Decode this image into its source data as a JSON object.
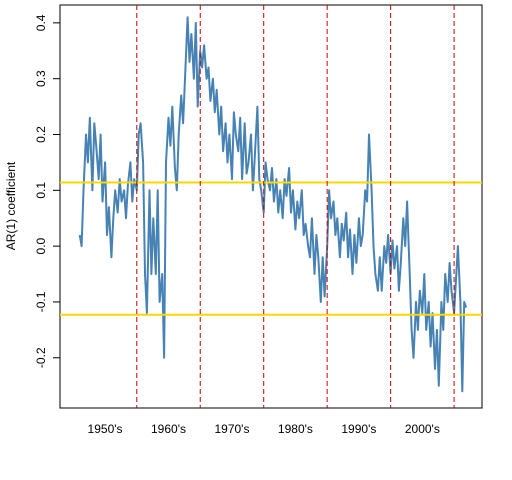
{
  "chart_data": {
    "type": "line",
    "ylabel": "AR(1) coefficient",
    "xlim": [
      1947.9,
      2014.4
    ],
    "ylim": [
      -0.29,
      0.432
    ],
    "yticks": [
      -0.2,
      -0.1,
      {
        "value": 0,
        "label": "0.0"
      },
      0.1,
      0.2,
      0.3,
      0.4
    ],
    "xlabels": [
      {
        "value": 1955,
        "label": "1950's"
      },
      {
        "value": 1965,
        "label": "1960's"
      },
      {
        "value": 1975,
        "label": "1970's"
      },
      {
        "value": 1985,
        "label": "1980's"
      },
      {
        "value": 1995,
        "label": "1990's"
      },
      {
        "value": 2005,
        "label": "2000's"
      }
    ],
    "vlines": {
      "color": "#cc0000",
      "values": [
        1960,
        1970,
        1980,
        1990,
        2000,
        2010
      ]
    },
    "hlines": {
      "color": "#ffd700",
      "values": [
        0.114,
        -0.123
      ]
    },
    "series": [
      {
        "color": "#4682b4",
        "x": [
          1951.0,
          1951.3,
          1951.6,
          1952.0,
          1952.3,
          1952.6,
          1953.0,
          1953.3,
          1953.6,
          1954.0,
          1954.3,
          1954.6,
          1955.0,
          1955.3,
          1955.6,
          1956.0,
          1956.3,
          1956.6,
          1957.0,
          1957.3,
          1957.6,
          1958.0,
          1958.3,
          1958.6,
          1959.0,
          1959.3,
          1959.6,
          1960.0,
          1960.3,
          1960.6,
          1961.0,
          1961.3,
          1961.6,
          1962.0,
          1962.3,
          1962.6,
          1963.0,
          1963.3,
          1963.6,
          1964.0,
          1964.3,
          1964.6,
          1965.0,
          1965.3,
          1965.6,
          1966.0,
          1966.3,
          1966.6,
          1967.0,
          1967.3,
          1967.6,
          1968.0,
          1968.3,
          1968.6,
          1969.0,
          1969.3,
          1969.6,
          1970.0,
          1970.3,
          1970.6,
          1971.0,
          1971.3,
          1971.6,
          1972.0,
          1972.3,
          1972.6,
          1973.0,
          1973.3,
          1973.6,
          1974.0,
          1974.3,
          1974.6,
          1975.0,
          1975.3,
          1975.6,
          1976.0,
          1976.3,
          1976.6,
          1977.0,
          1977.3,
          1977.6,
          1978.0,
          1978.3,
          1978.6,
          1979.0,
          1979.3,
          1979.6,
          1980.0,
          1980.3,
          1980.6,
          1981.0,
          1981.3,
          1981.6,
          1982.0,
          1982.3,
          1982.6,
          1983.0,
          1983.3,
          1983.6,
          1984.0,
          1984.3,
          1984.6,
          1985.0,
          1985.3,
          1985.6,
          1986.0,
          1986.3,
          1986.6,
          1987.0,
          1987.3,
          1987.6,
          1988.0,
          1988.3,
          1988.6,
          1989.0,
          1989.3,
          1989.6,
          1990.0,
          1990.3,
          1990.6,
          1991.0,
          1991.3,
          1991.6,
          1992.0,
          1992.3,
          1992.6,
          1993.0,
          1993.3,
          1993.6,
          1994.0,
          1994.3,
          1994.6,
          1995.0,
          1995.3,
          1995.6,
          1996.0,
          1996.3,
          1996.6,
          1997.0,
          1997.3,
          1997.6,
          1998.0,
          1998.3,
          1998.6,
          1999.0,
          1999.3,
          1999.6,
          2000.0,
          2000.3,
          2000.6,
          2001.0,
          2001.3,
          2001.6,
          2002.0,
          2002.3,
          2002.6,
          2003.0,
          2003.3,
          2003.6,
          2004.0,
          2004.3,
          2004.6,
          2005.0,
          2005.3,
          2005.6,
          2006.0,
          2006.3,
          2006.6,
          2007.0,
          2007.3,
          2007.6,
          2008.0,
          2008.3,
          2008.6,
          2009.0,
          2009.3,
          2009.6,
          2010.0,
          2010.3,
          2010.6,
          2011.0,
          2011.3,
          2011.6,
          2011.9
        ],
        "values": [
          0.02,
          0.0,
          0.1,
          0.2,
          0.15,
          0.23,
          0.1,
          0.22,
          0.18,
          0.12,
          0.2,
          0.08,
          0.15,
          0.02,
          0.07,
          -0.02,
          0.05,
          0.1,
          0.06,
          0.12,
          0.08,
          0.1,
          0.05,
          0.11,
          0.15,
          0.08,
          0.12,
          0.1,
          0.2,
          0.22,
          0.15,
          -0.05,
          -0.12,
          0.1,
          -0.05,
          0.05,
          -0.05,
          0.1,
          -0.1,
          -0.05,
          -0.2,
          0.15,
          0.23,
          0.18,
          0.25,
          0.14,
          0.1,
          0.2,
          0.27,
          0.22,
          0.3,
          0.41,
          0.33,
          0.38,
          0.3,
          0.4,
          0.25,
          0.35,
          0.32,
          0.36,
          0.3,
          0.32,
          0.26,
          0.3,
          0.24,
          0.28,
          0.2,
          0.25,
          0.17,
          0.22,
          0.15,
          0.2,
          0.12,
          0.24,
          0.2,
          0.17,
          0.23,
          0.12,
          0.22,
          0.13,
          0.15,
          0.2,
          0.1,
          0.16,
          0.25,
          0.12,
          0.1,
          0.06,
          0.15,
          0.12,
          0.1,
          0.14,
          0.08,
          0.12,
          0.06,
          0.1,
          0.05,
          0.12,
          0.09,
          0.14,
          0.06,
          0.1,
          0.03,
          0.08,
          0.05,
          0.1,
          0.02,
          0.04,
          0.0,
          -0.02,
          0.05,
          -0.05,
          0.02,
          -0.02,
          -0.1,
          -0.02,
          -0.09,
          0.0,
          0.1,
          0.05,
          0.08,
          0.02,
          0.05,
          -0.02,
          0.04,
          0.01,
          0.06,
          -0.02,
          0.03,
          -0.05,
          0.02,
          -0.03,
          0.05,
          0.0,
          0.02,
          0.1,
          0.08,
          0.2,
          0.1,
          0.0,
          -0.05,
          -0.08,
          -0.02,
          -0.08,
          0.0,
          -0.03,
          0.02,
          -0.05,
          0.01,
          -0.04,
          0.0,
          -0.08,
          -0.03,
          0.05,
          0.0,
          0.08,
          -0.05,
          -0.15,
          -0.2,
          -0.1,
          -0.15,
          -0.08,
          -0.12,
          -0.05,
          -0.15,
          -0.1,
          -0.18,
          -0.12,
          -0.22,
          -0.15,
          -0.25,
          -0.1,
          -0.15,
          -0.05,
          -0.1,
          -0.03,
          -0.08,
          -0.12,
          -0.06,
          0.0,
          -0.1,
          -0.26,
          -0.1,
          -0.11
        ]
      }
    ]
  }
}
